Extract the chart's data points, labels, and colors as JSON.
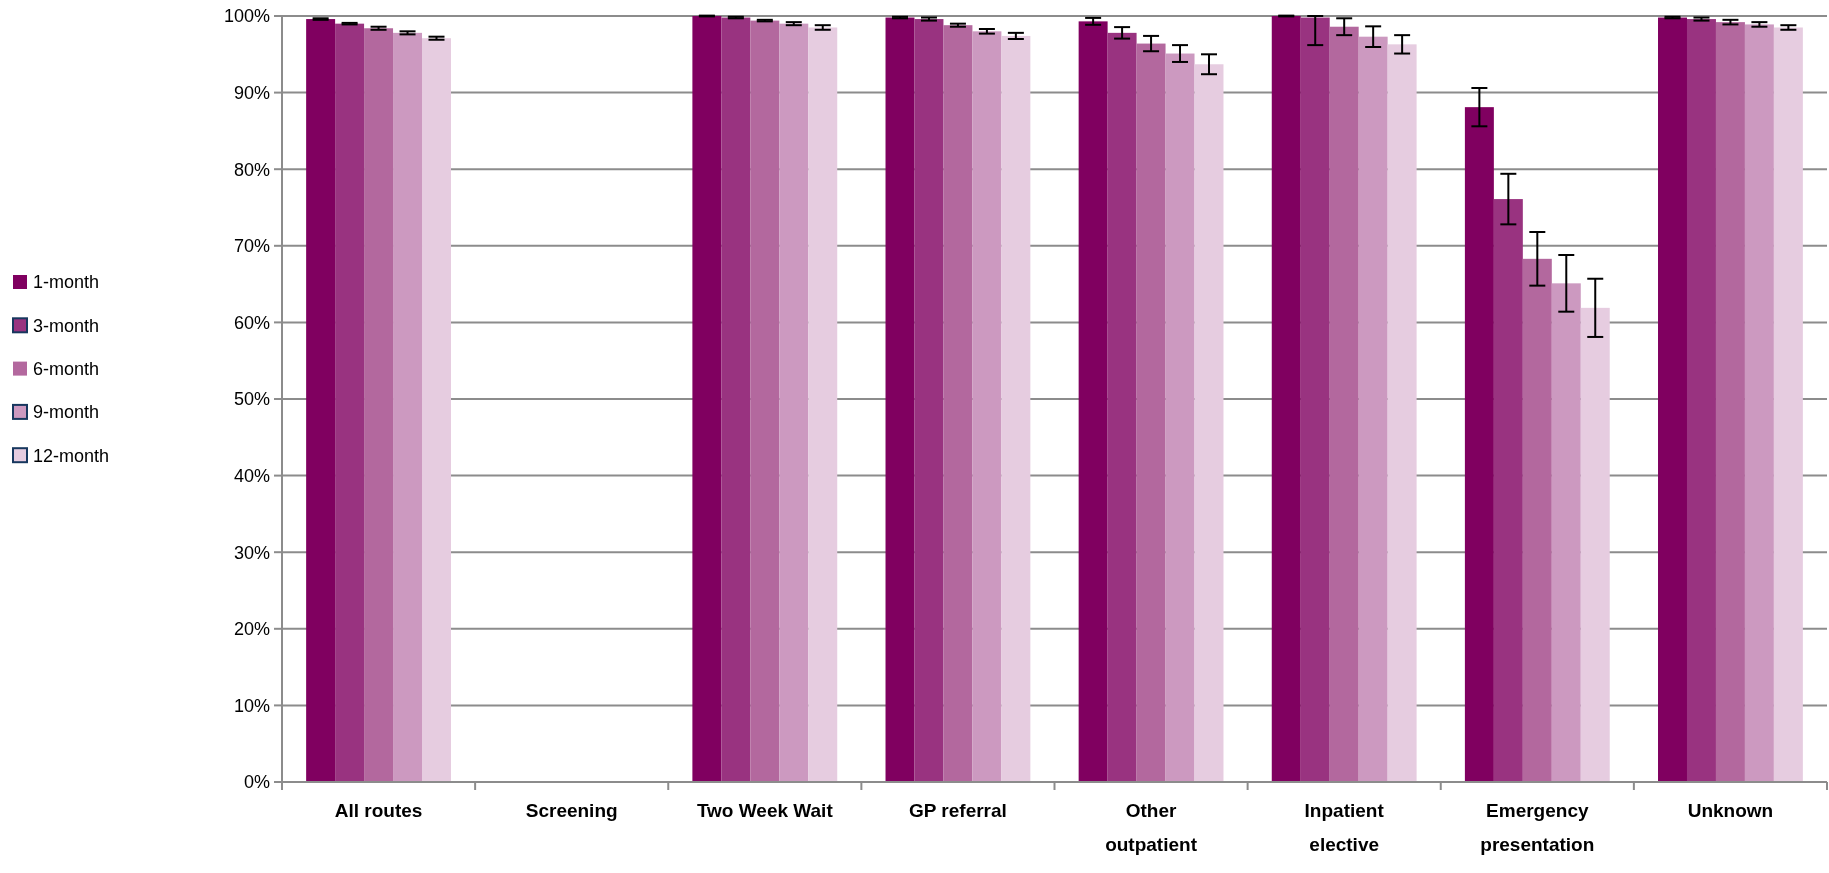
{
  "chart_data": {
    "type": "bar",
    "categories": [
      "All routes",
      "Screening",
      "Two Week Wait",
      "GP referral",
      "Other outpatient",
      "Inpatient elective",
      "Emergency presentation",
      "Unknown"
    ],
    "series": [
      {
        "name": "1-month",
        "color": "#800060",
        "values": [
          99.6,
          0,
          100,
          99.8,
          99.3,
          100,
          88.1,
          99.8
        ],
        "errors": [
          0.1,
          null,
          0.05,
          0.1,
          0.45,
          0.05,
          2.5,
          0.1
        ]
      },
      {
        "name": "3-month",
        "color": "#993380",
        "values": [
          99.0,
          0,
          99.8,
          99.6,
          97.8,
          99.8,
          76.1,
          99.6
        ],
        "errors": [
          0.1,
          null,
          0.1,
          0.2,
          0.75,
          [
            96.2,
            100
          ],
          3.3,
          0.2
        ]
      },
      {
        "name": "6-month",
        "color": "#b3689e",
        "values": [
          98.4,
          0,
          99.4,
          98.8,
          96.4,
          98.6,
          68.3,
          99.2
        ],
        "errors": [
          0.2,
          null,
          0.1,
          0.2,
          1.0,
          1.1,
          3.5,
          0.3
        ]
      },
      {
        "name": "9-month",
        "color": "#cc99c0",
        "values": [
          97.8,
          0,
          99.0,
          98.0,
          95.1,
          97.3,
          65.1,
          98.9
        ],
        "errors": [
          0.2,
          null,
          0.2,
          0.3,
          1.1,
          1.35,
          3.7,
          0.3
        ]
      },
      {
        "name": "12-month",
        "color": "#e6cce0",
        "values": [
          97.1,
          0,
          98.5,
          97.4,
          93.7,
          96.3,
          61.9,
          98.5
        ],
        "errors": [
          0.2,
          null,
          0.3,
          0.4,
          1.3,
          1.2,
          3.8,
          0.3
        ]
      }
    ],
    "ylim": [
      0,
      100
    ],
    "yticks": [
      {
        "value": 0,
        "label": "0%"
      },
      {
        "value": 10,
        "label": "10%"
      },
      {
        "value": 20,
        "label": "20%"
      },
      {
        "value": 30,
        "label": "30%"
      },
      {
        "value": 40,
        "label": "40%"
      },
      {
        "value": 50,
        "label": "50%"
      },
      {
        "value": 60,
        "label": "60%"
      },
      {
        "value": 70,
        "label": "70%"
      },
      {
        "value": 80,
        "label": "80%"
      },
      {
        "value": 90,
        "label": "90%"
      },
      {
        "value": 100,
        "label": "100%"
      }
    ],
    "grid": "y",
    "legend": "left"
  }
}
